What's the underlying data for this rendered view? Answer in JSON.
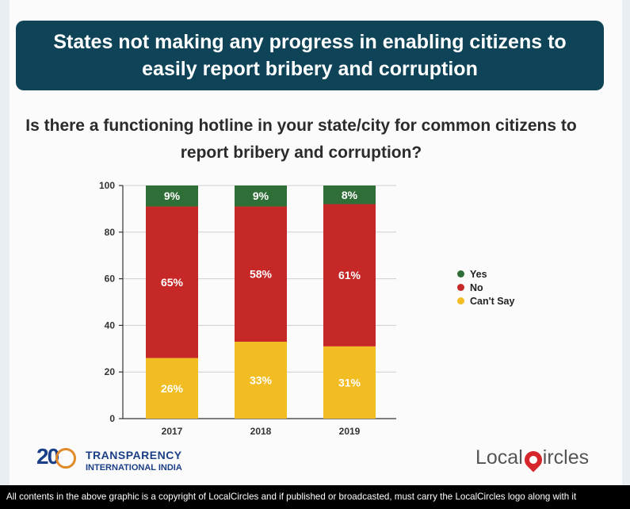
{
  "banner": {
    "title": "States not making any progress in enabling citizens to easily report bribery and corruption"
  },
  "question": "Is there a functioning hotline in your state/city for common citizens to report bribery and corruption?",
  "colors": {
    "yes": "#2f6e36",
    "no": "#c62727",
    "cant_say": "#f2bc23",
    "banner": "#0f4458"
  },
  "chart_data": {
    "type": "bar",
    "stacked": true,
    "categories": [
      "2017",
      "2018",
      "2019"
    ],
    "series": [
      {
        "name": "Can't Say",
        "values": [
          26,
          33,
          31
        ],
        "labels": [
          "26%",
          "33%",
          "31%"
        ],
        "color": "#f2bc23"
      },
      {
        "name": "No",
        "values": [
          65,
          58,
          61
        ],
        "labels": [
          "65%",
          "58%",
          "61%"
        ],
        "color": "#c62727"
      },
      {
        "name": "Yes",
        "values": [
          9,
          9,
          8
        ],
        "labels": [
          "9%",
          "9%",
          "8%"
        ],
        "color": "#2f6e36"
      }
    ],
    "yticks": [
      "0",
      "20",
      "40",
      "60",
      "80",
      "100"
    ],
    "ylim": [
      0,
      100
    ],
    "legend": [
      "Yes",
      "No",
      "Can't Say"
    ],
    "legend_position": "right",
    "grid": true
  },
  "logos": {
    "ti_number": "20",
    "ti_line1": "TRANSPARENCY",
    "ti_line2": "INTERNATIONAL INDIA",
    "lc_left": "Local",
    "lc_right": "ircles"
  },
  "footer": "All contents in the above graphic is a copyright of LocalCircles and if published or broadcasted, must carry the LocalCircles logo along with it"
}
